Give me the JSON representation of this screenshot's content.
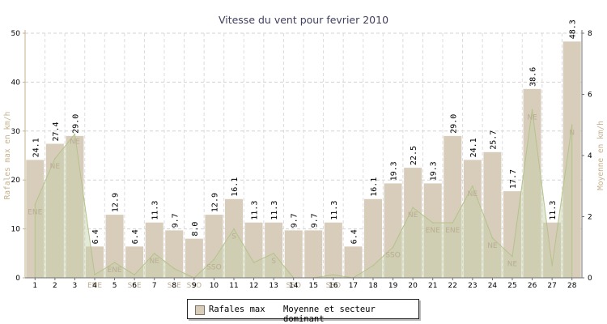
{
  "chart_data": {
    "type": "bar",
    "title": "Vitesse du vent pour fevrier 2010",
    "ylabel": "Rafales max en km/h",
    "y2label": "Moyenne en km/h",
    "ylim": [
      0,
      50
    ],
    "y2lim": [
      0,
      8
    ],
    "yticks": [
      "0",
      "10",
      "20",
      "30",
      "40",
      "50"
    ],
    "y2ticks": [
      "0",
      "2",
      "4",
      "6",
      "8"
    ],
    "grid": true,
    "legend_position": "bottom",
    "categories": [
      "1",
      "2",
      "3",
      "4",
      "5",
      "6",
      "7",
      "8",
      "9",
      "10",
      "11",
      "12",
      "13",
      "14",
      "15",
      "16",
      "17",
      "18",
      "19",
      "20",
      "21",
      "22",
      "23",
      "24",
      "25",
      "26",
      "27",
      "28"
    ],
    "series": [
      {
        "name": "Rafales max",
        "type": "bar",
        "axis": "left",
        "values": [
          24.1,
          27.4,
          29.0,
          6.4,
          12.9,
          6.4,
          11.3,
          9.7,
          8.0,
          12.9,
          16.1,
          11.3,
          11.3,
          9.7,
          9.7,
          11.3,
          6.4,
          16.1,
          19.3,
          22.5,
          19.3,
          29.0,
          24.1,
          25.7,
          17.7,
          38.6,
          11.3,
          48.3
        ],
        "labels": [
          "24.1",
          "27.4",
          "29.0",
          "6.4",
          "12.9",
          "6.4",
          "11.3",
          "9.7",
          "8.0",
          "12.9",
          "16.1",
          "11.3",
          "11.3",
          "9.7",
          "9.7",
          "11.3",
          "6.4",
          "16.1",
          "19.3",
          "22.5",
          "19.3",
          "29.0",
          "24.1",
          "25.7",
          "17.7",
          "38.6",
          "11.3",
          "48.3"
        ],
        "color": "#d8ccbb"
      },
      {
        "name": "Moyenne et secteur dominant",
        "type": "area",
        "axis": "right",
        "values": [
          2.4,
          3.9,
          4.7,
          0.1,
          0.5,
          0.1,
          0.8,
          0.3,
          0.0,
          0.6,
          1.6,
          0.5,
          0.8,
          0.0,
          0.0,
          0.1,
          0.0,
          0.4,
          1.0,
          2.3,
          1.8,
          1.8,
          3.0,
          1.3,
          0.7,
          5.5,
          0.4,
          5.0
        ],
        "sectors": [
          "ENE",
          "NE",
          "NE",
          "ENE",
          "ENE",
          "SSE",
          "NE",
          "SSE",
          "SSO",
          "SSO",
          "S",
          "",
          "S",
          "SSO",
          "",
          "SSO",
          "",
          "",
          "SSO",
          "NE",
          "ENE",
          "ENE",
          "NE",
          "NE",
          "NE",
          "NE",
          "",
          "N"
        ],
        "color": "#c5d0a8"
      }
    ]
  }
}
